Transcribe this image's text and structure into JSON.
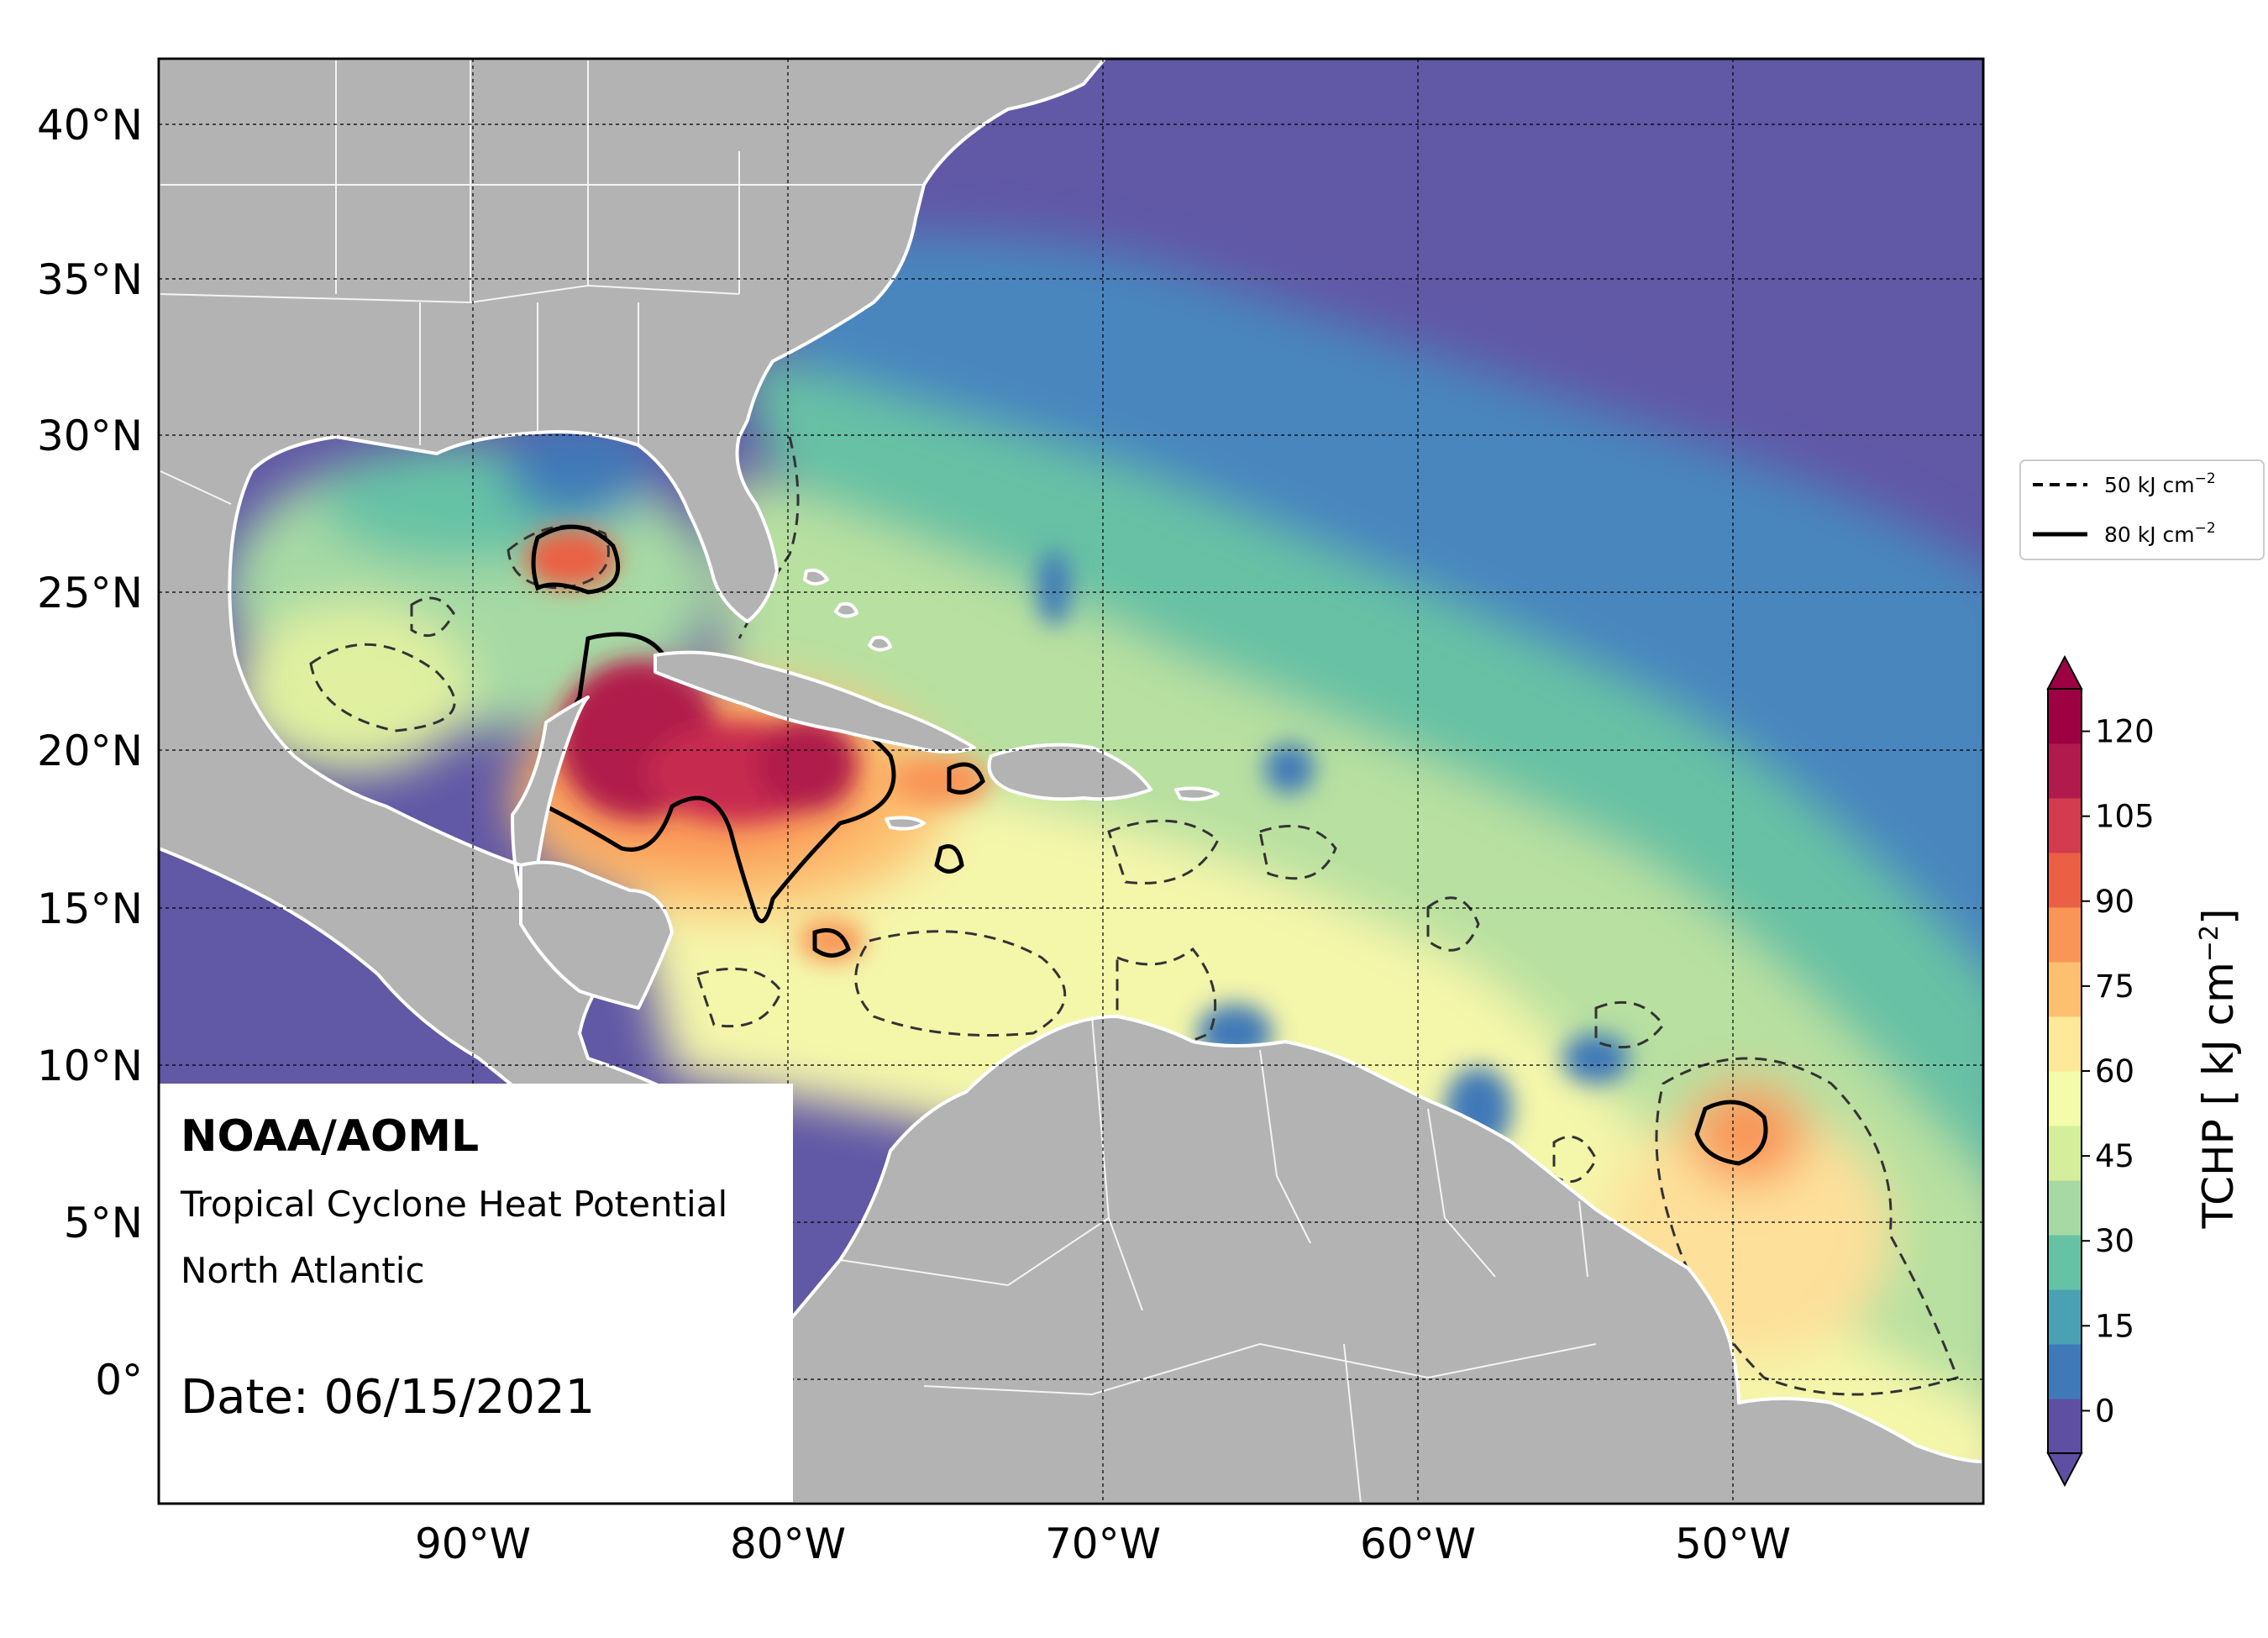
{
  "map": {
    "org": "NOAA/AOML",
    "product": "Tropical Cyclone Heat Potential",
    "region": "North Atlantic",
    "date_text": "Date: 06/15/2021",
    "lat_labels": [
      "40°N",
      "35°N",
      "30°N",
      "25°N",
      "20°N",
      "15°N",
      "10°N",
      "5°N",
      "0°"
    ],
    "lon_labels": [
      "90°W",
      "80°W",
      "70°W",
      "60°W",
      "50°W"
    ],
    "legend": {
      "dashed_value": "50 kJ cm",
      "solid_value": "80 kJ cm",
      "unit_exponent": "−2"
    },
    "colorbar": {
      "label": "TCHP [ kJ cm",
      "label_exponent": "−2",
      "label_close": "]",
      "ticks": [
        "0",
        "15",
        "30",
        "45",
        "60",
        "75",
        "90",
        "105",
        "120"
      ],
      "colors": [
        "#5e4fa2",
        "#3f79b8",
        "#4aa1b3",
        "#66c2a5",
        "#a6d9a4",
        "#d5ee9b",
        "#f4fbaa",
        "#fee89a",
        "#fdc070",
        "#f99556",
        "#eb6044",
        "#d33c4e",
        "#b01a4c",
        "#9e0142"
      ]
    },
    "colors": {
      "land": "#b3b3b3",
      "land_border": "#ffffff",
      "ocean_deep": "#6158a6",
      "frame": "#000000"
    }
  }
}
